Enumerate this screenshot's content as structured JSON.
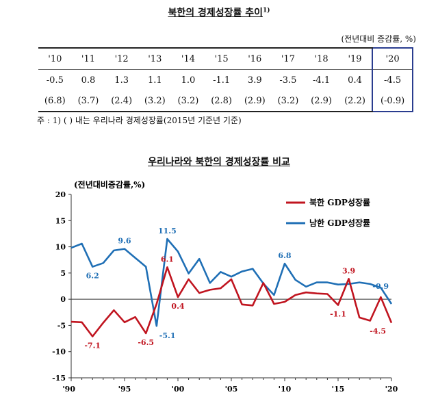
{
  "table": {
    "title": "북한의 경제성장률 추이",
    "title_sup": "1)",
    "unit": "(전년대비 증감률, %)",
    "years": [
      "'10",
      "'11",
      "'12",
      "'13",
      "'14",
      "'15",
      "'16",
      "'17",
      "'18",
      "'19",
      "'20"
    ],
    "north_values": [
      "-0.5",
      "0.8",
      "1.3",
      "1.1",
      "1.0",
      "-1.1",
      "3.9",
      "-3.5",
      "-4.1",
      "0.4",
      "-4.5"
    ],
    "south_values": [
      "(6.8)",
      "(3.7)",
      "(2.4)",
      "(3.2)",
      "(3.2)",
      "(2.8)",
      "(2.9)",
      "(3.2)",
      "(2.9)",
      "(2.2)",
      "(-0.9)"
    ],
    "highlight_year": "'20",
    "note": "주 : 1) ( ) 내는 우리나라 경제성장률(2015년 기준년 기준)"
  },
  "chart_data": {
    "type": "line",
    "title": "우리나라와 북한의 경제성장률 비교",
    "ylabel": "(전년대비증감률,%)",
    "xlabel": "",
    "ylim": [
      -15,
      20
    ],
    "xlim": [
      1990,
      2020
    ],
    "yticks": [
      "20",
      "15",
      "10",
      "5",
      "0",
      "-5",
      "-10",
      "-15"
    ],
    "xticks": [
      {
        "year": 1990,
        "label": "'90"
      },
      {
        "year": 1995,
        "label": "'95"
      },
      {
        "year": 2000,
        "label": "'00"
      },
      {
        "year": 2005,
        "label": "'05"
      },
      {
        "year": 2010,
        "label": "'10"
      },
      {
        "year": 2015,
        "label": "'15"
      },
      {
        "year": 2020,
        "label": "'20"
      }
    ],
    "legend_position": "top-right",
    "grid": false,
    "x": [
      1990,
      1991,
      1992,
      1993,
      1994,
      1995,
      1996,
      1997,
      1998,
      1999,
      2000,
      2001,
      2002,
      2003,
      2004,
      2005,
      2006,
      2007,
      2008,
      2009,
      2010,
      2011,
      2012,
      2013,
      2014,
      2015,
      2016,
      2017,
      2018,
      2019,
      2020
    ],
    "series": [
      {
        "name": "북한 GDP성장률",
        "color": "#c0141f",
        "values": [
          -4.3,
          -4.4,
          -7.1,
          -4.5,
          -2.1,
          -4.4,
          -3.4,
          -6.5,
          -0.9,
          6.1,
          0.4,
          3.8,
          1.2,
          1.8,
          2.1,
          3.8,
          -1.0,
          -1.2,
          3.1,
          -0.9,
          -0.5,
          0.8,
          1.3,
          1.1,
          1.0,
          -1.1,
          3.9,
          -3.5,
          -4.1,
          0.4,
          -4.5
        ]
      },
      {
        "name": "남한 GDP성장률",
        "color": "#1f6fb5",
        "values": [
          9.8,
          10.6,
          6.2,
          6.9,
          9.3,
          9.6,
          7.9,
          6.2,
          -5.1,
          11.5,
          9.1,
          4.9,
          7.7,
          3.1,
          5.2,
          4.3,
          5.3,
          5.8,
          3.0,
          0.8,
          6.8,
          3.7,
          2.4,
          3.2,
          3.2,
          2.8,
          2.9,
          3.2,
          2.9,
          2.2,
          -0.9
        ]
      }
    ],
    "annotations": [
      {
        "series": 0,
        "year": 1992,
        "value": -7.1,
        "label": "-7.1",
        "pos": "below"
      },
      {
        "series": 0,
        "year": 1997,
        "value": -6.5,
        "label": "-6.5",
        "pos": "below"
      },
      {
        "series": 0,
        "year": 1999,
        "value": 6.1,
        "label": "6.1",
        "pos": "above"
      },
      {
        "series": 0,
        "year": 2000,
        "value": 0.4,
        "label": "0.4",
        "pos": "below"
      },
      {
        "series": 0,
        "year": 2015,
        "value": -1.1,
        "label": "-1.1",
        "pos": "below"
      },
      {
        "series": 0,
        "year": 2016,
        "value": 3.9,
        "label": "3.9",
        "pos": "above"
      },
      {
        "series": 0,
        "year": 2020,
        "value": -4.5,
        "label": "-4.5",
        "pos": "below-left"
      },
      {
        "series": 1,
        "year": 1992,
        "value": 6.2,
        "label": "6.2",
        "pos": "below"
      },
      {
        "series": 1,
        "year": 1995,
        "value": 9.6,
        "label": "9.6",
        "pos": "above"
      },
      {
        "series": 1,
        "year": 1998,
        "value": -5.1,
        "label": "-5.1",
        "pos": "below-right"
      },
      {
        "series": 1,
        "year": 1999,
        "value": 11.5,
        "label": "11.5",
        "pos": "above"
      },
      {
        "series": 1,
        "year": 2010,
        "value": 6.8,
        "label": "6.8",
        "pos": "above"
      },
      {
        "series": 1,
        "year": 2020,
        "value": -0.9,
        "label": "-0.9",
        "pos": "above-left"
      }
    ]
  }
}
